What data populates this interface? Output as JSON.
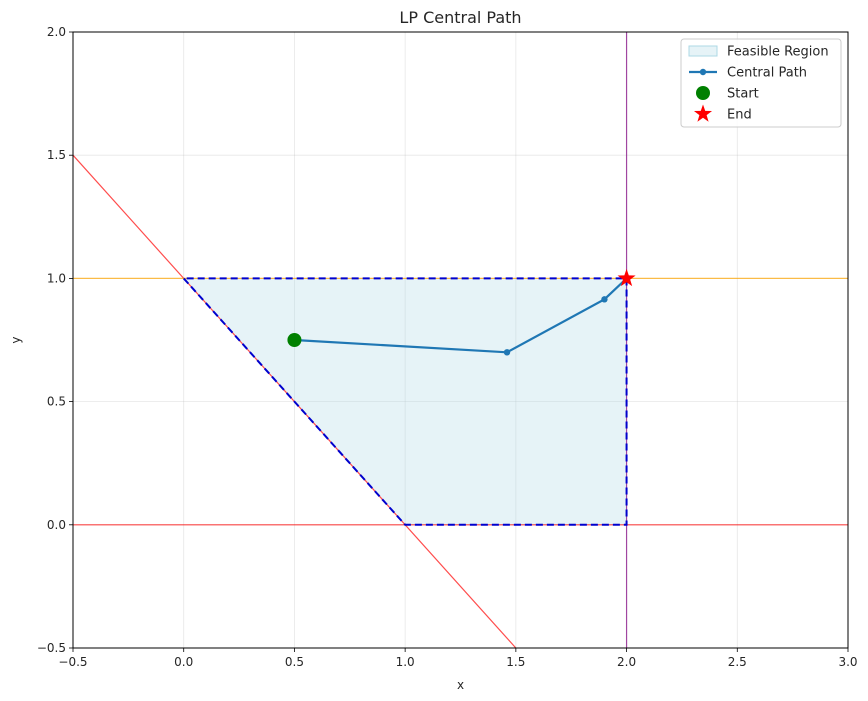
{
  "chart_data": {
    "type": "line",
    "title": "LP Central Path",
    "xlabel": "x",
    "ylabel": "y",
    "xlim": [
      -0.5,
      3.0
    ],
    "ylim": [
      -0.5,
      2.0
    ],
    "xticks": [
      -0.5,
      0.0,
      0.5,
      1.0,
      1.5,
      2.0,
      2.5,
      3.0
    ],
    "yticks": [
      -0.5,
      0.0,
      0.5,
      1.0,
      1.5,
      2.0
    ],
    "xtick_labels": [
      "−0.5",
      "0.0",
      "0.5",
      "1.0",
      "1.5",
      "2.0",
      "2.5",
      "3.0"
    ],
    "ytick_labels": [
      "−0.5",
      "0.0",
      "0.5",
      "1.0",
      "1.5",
      "2.0"
    ],
    "grid": true,
    "legend_position": "top-right",
    "constraint_lines": [
      {
        "kind": "line",
        "points": [
          [
            -0.5,
            1.5
          ],
          [
            1.5,
            -0.5
          ]
        ],
        "color": "#ff0000"
      },
      {
        "kind": "hline",
        "y": 0.0,
        "color": "#ff0000"
      },
      {
        "kind": "vline",
        "x": 2.0,
        "color": "#800080"
      },
      {
        "kind": "hline",
        "y": 1.0,
        "color": "#ffa500"
      }
    ],
    "feasible_region": {
      "name": "Feasible Region",
      "vertices": [
        [
          0.0,
          1.0
        ],
        [
          1.0,
          0.0
        ],
        [
          2.0,
          0.0
        ],
        [
          2.0,
          1.0
        ]
      ],
      "fill": "#add8e6",
      "edge": "#0000cd"
    },
    "series": [
      {
        "name": "Central Path",
        "x": [
          0.5,
          1.46,
          1.9,
          2.0
        ],
        "y": [
          0.75,
          0.7,
          0.915,
          1.0
        ],
        "color": "#1f77b4"
      }
    ],
    "start": {
      "name": "Start",
      "x": 0.5,
      "y": 0.75,
      "color": "#008000"
    },
    "end": {
      "name": "End",
      "x": 2.0,
      "y": 1.0,
      "color": "#ff0000"
    },
    "legend": [
      "Feasible Region",
      "Central Path",
      "Start",
      "End"
    ]
  }
}
